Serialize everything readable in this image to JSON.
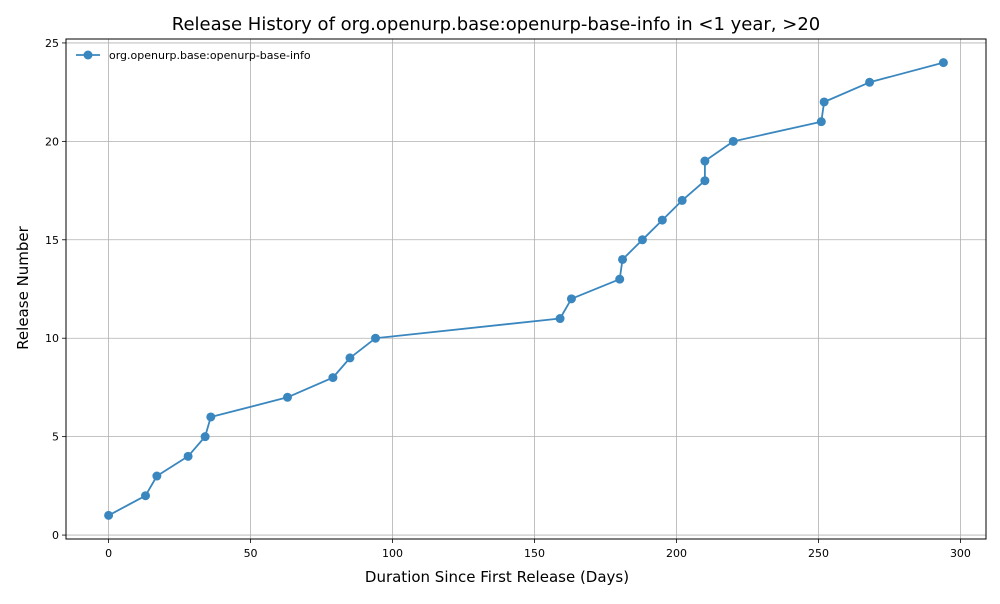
{
  "chart_data": {
    "type": "line",
    "title": "Release History of org.openurp.base:openurp-base-info in <1 year, >20",
    "xlabel": "Duration Since First Release (Days)",
    "ylabel": "Release Number",
    "xlim": [
      -15,
      309
    ],
    "ylim": [
      -0.2,
      25.2
    ],
    "xticks": [
      0,
      50,
      100,
      150,
      200,
      250,
      300
    ],
    "yticks": [
      0,
      5,
      10,
      15,
      20,
      25
    ],
    "grid": true,
    "legend_position": "upper-left",
    "series": [
      {
        "name": "org.openurp.base:openurp-base-info",
        "color": "#3a87bf",
        "marker": "circle",
        "x": [
          0,
          13,
          17,
          28,
          34,
          36,
          63,
          79,
          85,
          94,
          159,
          163,
          180,
          181,
          188,
          195,
          202,
          210,
          210,
          220,
          251,
          252,
          268,
          294
        ],
        "y": [
          1,
          2,
          3,
          4,
          5,
          6,
          7,
          8,
          9,
          10,
          11,
          12,
          13,
          14,
          15,
          16,
          17,
          18,
          19,
          20,
          21,
          22,
          23,
          24
        ]
      }
    ]
  }
}
